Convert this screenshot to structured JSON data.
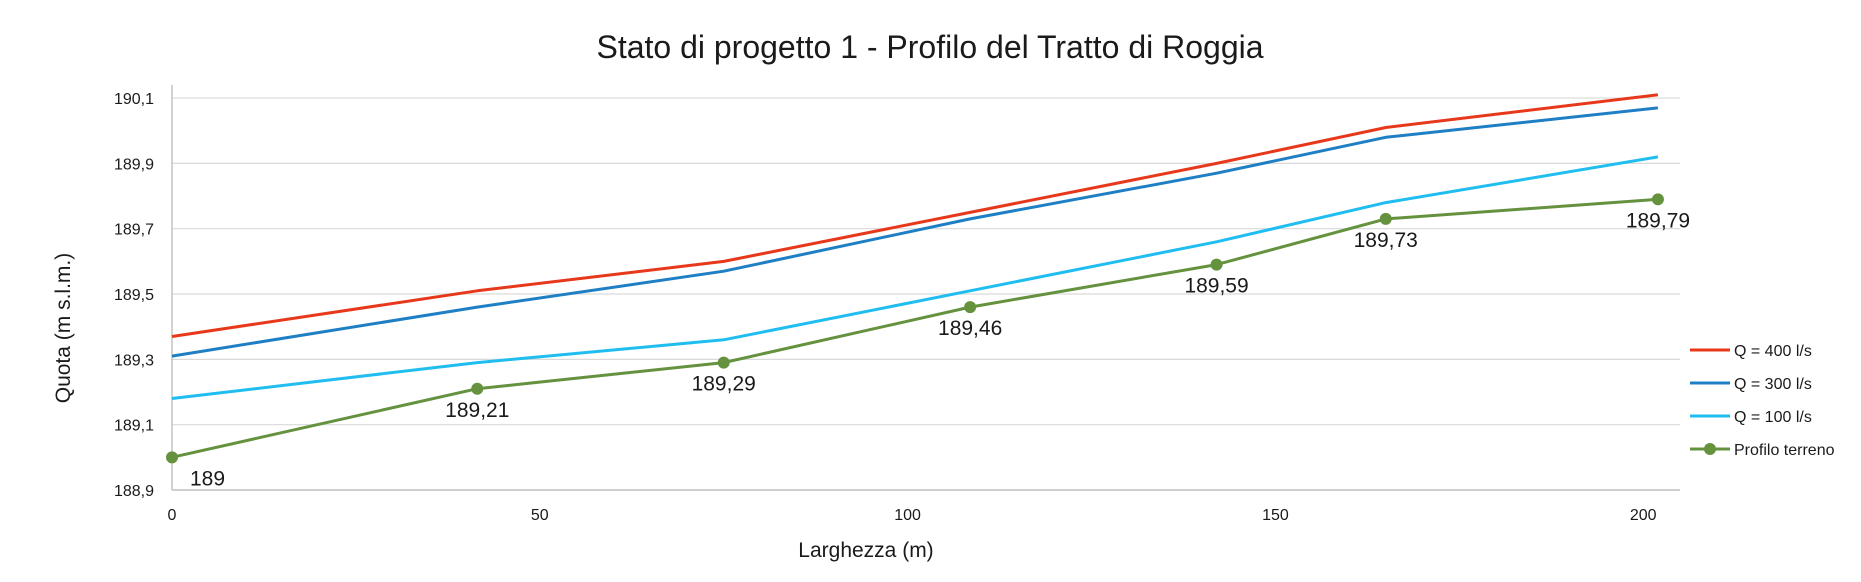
{
  "chart_data": {
    "type": "line",
    "title": "Stato di progetto 1 - Profilo del Tratto di Roggia",
    "xlabel": "Larghezza (m)",
    "ylabel": "Quota (m s.l.m.)",
    "xlim": [
      0,
      205
    ],
    "ylim": [
      188.9,
      190.14
    ],
    "x_ticks": [
      0,
      50,
      100,
      150,
      200
    ],
    "x_tick_labels": [
      "0",
      "50",
      "100",
      "150",
      "200"
    ],
    "y_ticks": [
      188.9,
      189.1,
      189.3,
      189.5,
      189.7,
      189.9,
      190.1
    ],
    "y_tick_labels": [
      "188,9",
      "189,1",
      "189,3",
      "189,5",
      "189,7",
      "189,9",
      "190,1"
    ],
    "grid": "horizontal",
    "legend_position": "right",
    "series": [
      {
        "name": "Q = 400 l/s",
        "color": "#e8381c",
        "marker": false,
        "x": [
          0,
          41.5,
          75,
          108.5,
          142,
          165,
          202
        ],
        "y": [
          189.37,
          189.51,
          189.6,
          189.75,
          189.9,
          190.01,
          190.11
        ]
      },
      {
        "name": "Q = 300 l/s",
        "color": "#1f7fc4",
        "marker": false,
        "x": [
          0,
          41.5,
          75,
          108.5,
          142,
          165,
          202
        ],
        "y": [
          189.31,
          189.46,
          189.57,
          189.73,
          189.87,
          189.98,
          190.07
        ]
      },
      {
        "name": "Q = 100 l/s",
        "color": "#1fbdf0",
        "marker": false,
        "x": [
          0,
          41.5,
          75,
          108.5,
          142,
          165,
          202
        ],
        "y": [
          189.18,
          189.29,
          189.36,
          189.51,
          189.66,
          189.78,
          189.92
        ]
      },
      {
        "name": "Profilo terreno",
        "color": "#64923e",
        "marker": true,
        "x": [
          0,
          41.5,
          75,
          108.5,
          142,
          165,
          202
        ],
        "y": [
          189.0,
          189.21,
          189.29,
          189.46,
          189.59,
          189.73,
          189.79
        ],
        "data_labels": [
          "189",
          "189,21",
          "189,29",
          "189,46",
          "189,59",
          "189,73",
          "189,79"
        ]
      }
    ]
  }
}
